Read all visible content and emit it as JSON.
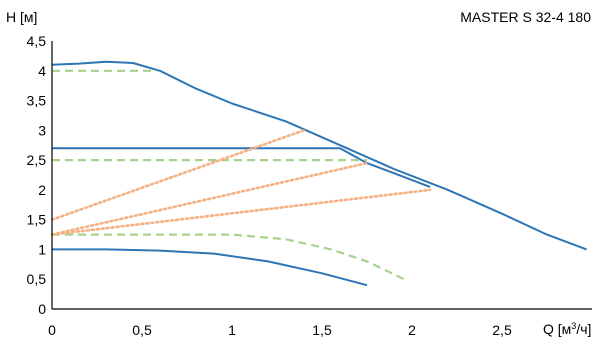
{
  "chart_data": {
    "type": "line",
    "title": "MASTER S 32-4 180",
    "ylabel": "H [м]",
    "xlabel_prefix": "Q [м",
    "xlabel_sup": "3",
    "xlabel_suffix": "/ч]",
    "xlim": [
      0,
      3
    ],
    "ylim": [
      0,
      4.5
    ],
    "x_ticks": [
      0,
      0.5,
      1,
      1.5,
      2,
      2.5
    ],
    "x_tick_labels": [
      "0",
      "0,5",
      "1",
      "1,5",
      "2",
      "2,5"
    ],
    "y_ticks": [
      0,
      0.5,
      1,
      1.5,
      2,
      2.5,
      3,
      3.5,
      4,
      4.5
    ],
    "y_tick_labels": [
      "0",
      "0,5",
      "1",
      "1,5",
      "2",
      "2,5",
      "3",
      "3,5",
      "4",
      "4,5"
    ],
    "grid": false,
    "colors": {
      "solid": "#2E75B6",
      "dashed": "#A9D18E",
      "dotted": "#F4B183",
      "axis": "#000000"
    },
    "series": [
      {
        "style": "solid",
        "points": [
          [
            0,
            4.1
          ],
          [
            0.15,
            4.12
          ],
          [
            0.3,
            4.15
          ],
          [
            0.45,
            4.13
          ],
          [
            0.6,
            4.0
          ],
          [
            0.8,
            3.7
          ],
          [
            1.0,
            3.45
          ],
          [
            1.3,
            3.15
          ],
          [
            1.6,
            2.75
          ],
          [
            1.9,
            2.35
          ],
          [
            2.2,
            2.0
          ],
          [
            2.5,
            1.6
          ],
          [
            2.75,
            1.25
          ],
          [
            2.97,
            1.0
          ]
        ]
      },
      {
        "style": "solid",
        "points": [
          [
            0,
            2.7
          ],
          [
            1.6,
            2.7
          ],
          [
            1.75,
            2.45
          ],
          [
            1.9,
            2.28
          ],
          [
            2.1,
            2.05
          ]
        ]
      },
      {
        "style": "solid",
        "points": [
          [
            0,
            1.0
          ],
          [
            0.3,
            1.0
          ],
          [
            0.6,
            0.98
          ],
          [
            0.9,
            0.93
          ],
          [
            1.2,
            0.8
          ],
          [
            1.5,
            0.6
          ],
          [
            1.75,
            0.4
          ]
        ]
      },
      {
        "style": "dashed",
        "points": [
          [
            0,
            4.0
          ],
          [
            0.58,
            4.0
          ]
        ]
      },
      {
        "style": "dashed",
        "points": [
          [
            0,
            2.5
          ],
          [
            1.75,
            2.5
          ]
        ]
      },
      {
        "style": "dashed",
        "points": [
          [
            0,
            1.25
          ],
          [
            0.5,
            1.25
          ],
          [
            1.0,
            1.25
          ],
          [
            1.3,
            1.17
          ],
          [
            1.55,
            1.0
          ],
          [
            1.75,
            0.8
          ],
          [
            1.97,
            0.48
          ]
        ]
      },
      {
        "style": "dotted",
        "points": [
          [
            0,
            1.5
          ],
          [
            1.4,
            3.0
          ]
        ]
      },
      {
        "style": "dotted",
        "points": [
          [
            0,
            1.25
          ],
          [
            1.75,
            2.45
          ]
        ]
      },
      {
        "style": "dotted",
        "points": [
          [
            0,
            1.25
          ],
          [
            2.1,
            2.0
          ]
        ]
      }
    ]
  }
}
